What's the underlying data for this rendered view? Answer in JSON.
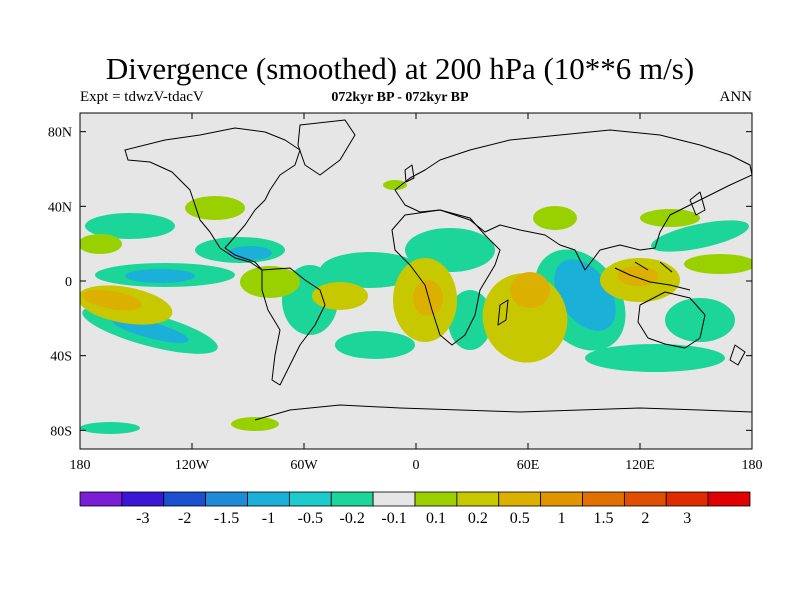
{
  "plot": {
    "title": "Divergence (smoothed) at 200 hPa (10**6 m/s)",
    "left_label": "Expt = tdwzV-tdacV",
    "center_label": "072kyr BP - 072kyr BP",
    "right_label": "ANN"
  },
  "map": {
    "projection": "cylindrical equidistant",
    "lon_range": [
      -180,
      180
    ],
    "lat_range": [
      -90,
      90
    ],
    "background_color": "#e6e6e6",
    "x_ticks": [
      {
        "value": -180,
        "label": "180"
      },
      {
        "value": -120,
        "label": "120W"
      },
      {
        "value": -60,
        "label": "60W"
      },
      {
        "value": 0,
        "label": "0"
      },
      {
        "value": 60,
        "label": "60E"
      },
      {
        "value": 120,
        "label": "120E"
      },
      {
        "value": 180,
        "label": "180"
      }
    ],
    "y_ticks": [
      {
        "value": 80,
        "label": "80N"
      },
      {
        "value": 40,
        "label": "40N"
      },
      {
        "value": 0,
        "label": "0"
      },
      {
        "value": -40,
        "label": "40S"
      },
      {
        "value": -80,
        "label": "80S"
      }
    ]
  },
  "colorbar": {
    "colors": [
      "#7a1fd6",
      "#3a17d6",
      "#1a4fd0",
      "#1f8ad6",
      "#1ab0d8",
      "#1ccccc",
      "#1cd699",
      "#e6e6e6",
      "#99d100",
      "#c8c800",
      "#dcb000",
      "#df9400",
      "#e07000",
      "#e04e00",
      "#e02a00",
      "#e00000"
    ],
    "labels": [
      "-3",
      "-2",
      "-1.5",
      "-1",
      "-0.5",
      "-0.2",
      "-0.1",
      "0.1",
      "0.2",
      "0.5",
      "1",
      "1.5",
      "2",
      "3"
    ]
  }
}
